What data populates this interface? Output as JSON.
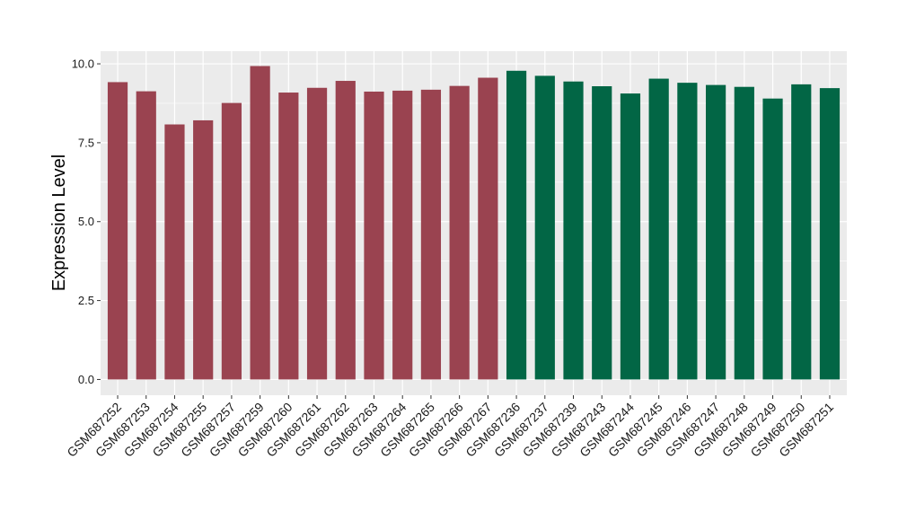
{
  "chart_data": {
    "type": "bar",
    "title": "",
    "xlabel": "",
    "ylabel": "Expression Level",
    "ylim": [
      -0.5,
      10.4
    ],
    "yticks": [
      "0.0",
      "2.5",
      "5.0",
      "7.5",
      "10.0"
    ],
    "grid": true,
    "categories": [
      "GSM687252",
      "GSM687253",
      "GSM687254",
      "GSM687255",
      "GSM687257",
      "GSM687259",
      "GSM687260",
      "GSM687261",
      "GSM687262",
      "GSM687263",
      "GSM687264",
      "GSM687265",
      "GSM687266",
      "GSM687267",
      "GSM687236",
      "GSM687237",
      "GSM687239",
      "GSM687243",
      "GSM687244",
      "GSM687245",
      "GSM687246",
      "GSM687247",
      "GSM687248",
      "GSM687249",
      "GSM687250",
      "GSM687251"
    ],
    "values": [
      9.42,
      9.13,
      8.08,
      8.21,
      8.76,
      9.93,
      9.09,
      9.24,
      9.46,
      9.12,
      9.15,
      9.18,
      9.3,
      9.56,
      9.78,
      9.62,
      9.44,
      9.29,
      9.06,
      9.53,
      9.4,
      9.33,
      9.27,
      8.9,
      9.35,
      9.23
    ],
    "bar_colors": [
      "#9a4350",
      "#9a4350",
      "#9a4350",
      "#9a4350",
      "#9a4350",
      "#9a4350",
      "#9a4350",
      "#9a4350",
      "#9a4350",
      "#9a4350",
      "#9a4350",
      "#9a4350",
      "#9a4350",
      "#9a4350",
      "#026645",
      "#026645",
      "#026645",
      "#026645",
      "#026645",
      "#026645",
      "#026645",
      "#026645",
      "#026645",
      "#026645",
      "#026645",
      "#026645"
    ],
    "panel_color": "#ebebeb",
    "grid_color": "#ffffff"
  }
}
